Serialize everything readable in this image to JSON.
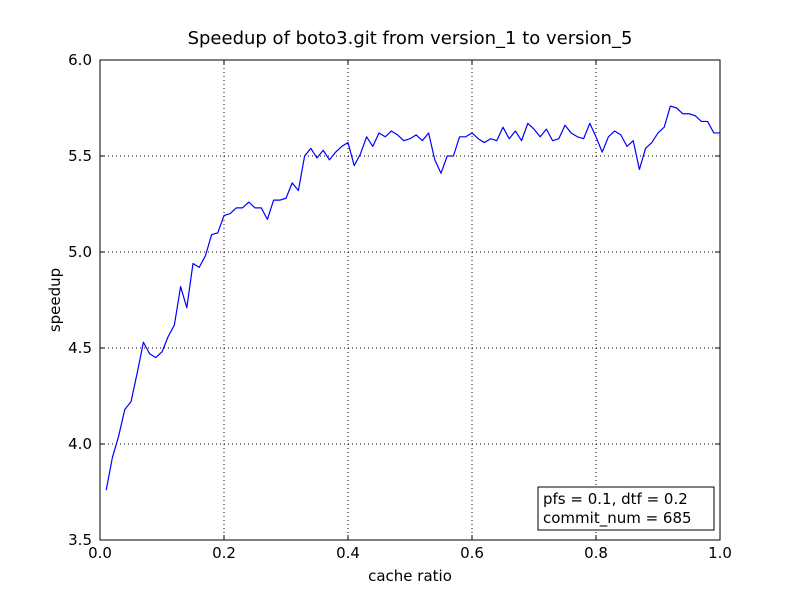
{
  "chart_data": {
    "type": "line",
    "title": "Speedup of boto3.git from version_1 to version_5",
    "xlabel": "cache ratio",
    "ylabel": "speedup",
    "xlim": [
      0.0,
      1.0
    ],
    "ylim": [
      3.5,
      6.0
    ],
    "xticks": [
      "0.0",
      "0.2",
      "0.4",
      "0.6",
      "0.8",
      "1.0"
    ],
    "yticks": [
      "3.5",
      "4.0",
      "4.5",
      "5.0",
      "5.5",
      "6.0"
    ],
    "grid": true,
    "annotation": [
      "pfs = 0.1, dtf = 0.2",
      "commit_num = 685"
    ],
    "annotation_position": "bottom-right",
    "line_color": "#0000ff",
    "series": [
      {
        "x": [
          0.01,
          0.02,
          0.03,
          0.04,
          0.05,
          0.06,
          0.07,
          0.08,
          0.09,
          0.1,
          0.11,
          0.12,
          0.13,
          0.14,
          0.15,
          0.16,
          0.17,
          0.18,
          0.19,
          0.2,
          0.21,
          0.22,
          0.23,
          0.24,
          0.25,
          0.26,
          0.27,
          0.28,
          0.29,
          0.3,
          0.31,
          0.32,
          0.33,
          0.34,
          0.35,
          0.36,
          0.37,
          0.38,
          0.39,
          0.4,
          0.41,
          0.42,
          0.43,
          0.44,
          0.45,
          0.46,
          0.47,
          0.48,
          0.49,
          0.5,
          0.51,
          0.52,
          0.53,
          0.54,
          0.55,
          0.56,
          0.57,
          0.58,
          0.59,
          0.6,
          0.61,
          0.62,
          0.63,
          0.64,
          0.65,
          0.66,
          0.67,
          0.68,
          0.69,
          0.7,
          0.71,
          0.72,
          0.73,
          0.74,
          0.75,
          0.76,
          0.77,
          0.78,
          0.79,
          0.8,
          0.81,
          0.82,
          0.83,
          0.84,
          0.85,
          0.86,
          0.87,
          0.88,
          0.89,
          0.9,
          0.91,
          0.92,
          0.93,
          0.94,
          0.95,
          0.96,
          0.97,
          0.98,
          0.99,
          1.0
        ],
        "y": [
          3.76,
          3.93,
          4.04,
          4.18,
          4.22,
          4.37,
          4.53,
          4.47,
          4.45,
          4.48,
          4.56,
          4.62,
          4.82,
          4.71,
          4.94,
          4.92,
          4.98,
          5.09,
          5.1,
          5.19,
          5.2,
          5.23,
          5.23,
          5.26,
          5.23,
          5.23,
          5.17,
          5.27,
          5.27,
          5.28,
          5.36,
          5.32,
          5.5,
          5.54,
          5.49,
          5.53,
          5.48,
          5.52,
          5.55,
          5.57,
          5.45,
          5.51,
          5.6,
          5.55,
          5.62,
          5.6,
          5.63,
          5.61,
          5.58,
          5.59,
          5.61,
          5.58,
          5.62,
          5.48,
          5.41,
          5.5,
          5.5,
          5.6,
          5.6,
          5.62,
          5.59,
          5.57,
          5.59,
          5.58,
          5.65,
          5.59,
          5.63,
          5.58,
          5.67,
          5.64,
          5.6,
          5.64,
          5.58,
          5.59,
          5.66,
          5.62,
          5.6,
          5.59,
          5.67,
          5.6,
          5.52,
          5.6,
          5.63,
          5.61,
          5.55,
          5.58,
          5.43,
          5.54,
          5.57,
          5.62,
          5.65,
          5.76,
          5.75,
          5.72,
          5.72,
          5.71,
          5.68,
          5.68,
          5.62,
          5.62
        ]
      }
    ]
  }
}
